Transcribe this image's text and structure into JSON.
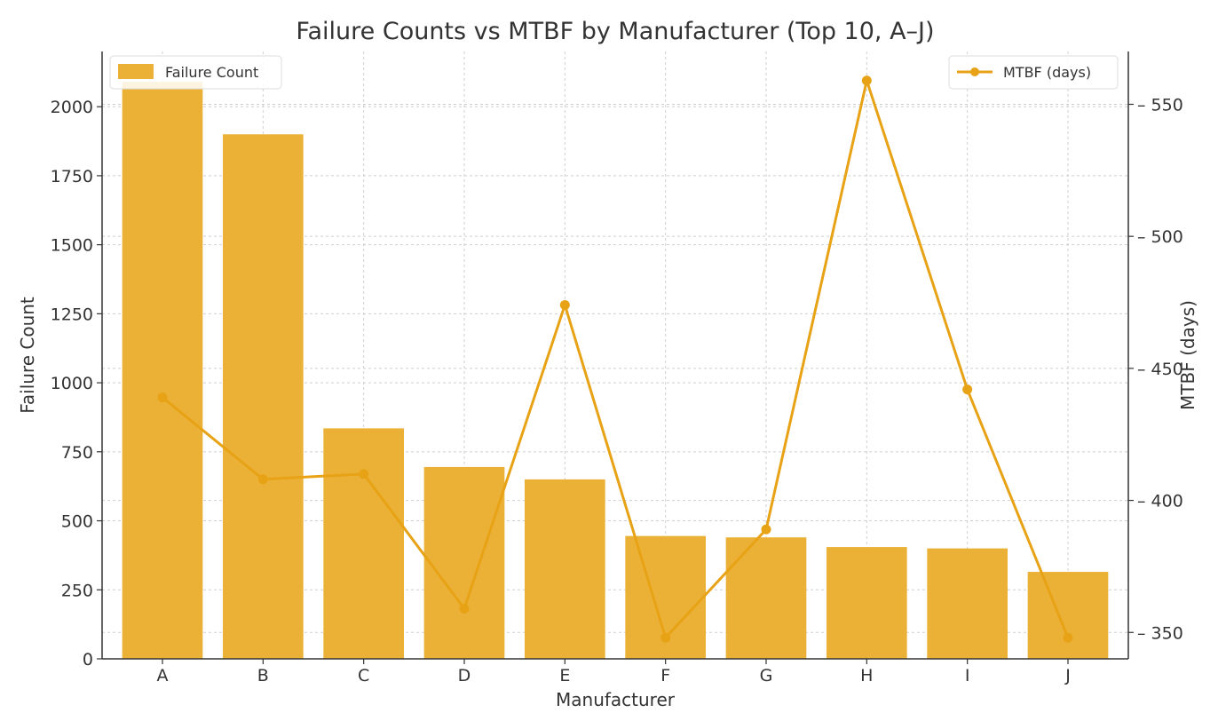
{
  "colors": {
    "bar": "#EBB136",
    "line": "#E8A215",
    "grid": "#cfcfcf",
    "axis": "#333333",
    "text": "#333333"
  },
  "chart_data": {
    "type": "bar",
    "title": "Failure Counts vs MTBF by Manufacturer (Top 10, A–J)",
    "xlabel": "Manufacturer",
    "ylabel": "Failure Count",
    "y2label": "MTBF (days)",
    "categories": [
      "A",
      "B",
      "C",
      "D",
      "E",
      "F",
      "G",
      "H",
      "I",
      "J"
    ],
    "ylim": [
      0,
      2200
    ],
    "y2lim": [
      340,
      570
    ],
    "yticks": [
      0,
      250,
      500,
      750,
      1000,
      1250,
      1500,
      1750,
      2000
    ],
    "y2ticks": [
      350,
      400,
      450,
      500,
      550
    ],
    "grid": true,
    "series": [
      {
        "name": "Failure Count",
        "type": "bar",
        "axis": "left",
        "values": [
          2090,
          1900,
          835,
          695,
          650,
          445,
          440,
          405,
          400,
          315
        ]
      },
      {
        "name": "MTBF (days)",
        "type": "line",
        "axis": "right",
        "marker": "circle",
        "values": [
          439,
          408,
          410,
          359,
          474,
          348,
          389,
          559,
          442,
          348
        ]
      }
    ],
    "legend_left_position": "top-left",
    "legend_right_position": "top-right"
  }
}
